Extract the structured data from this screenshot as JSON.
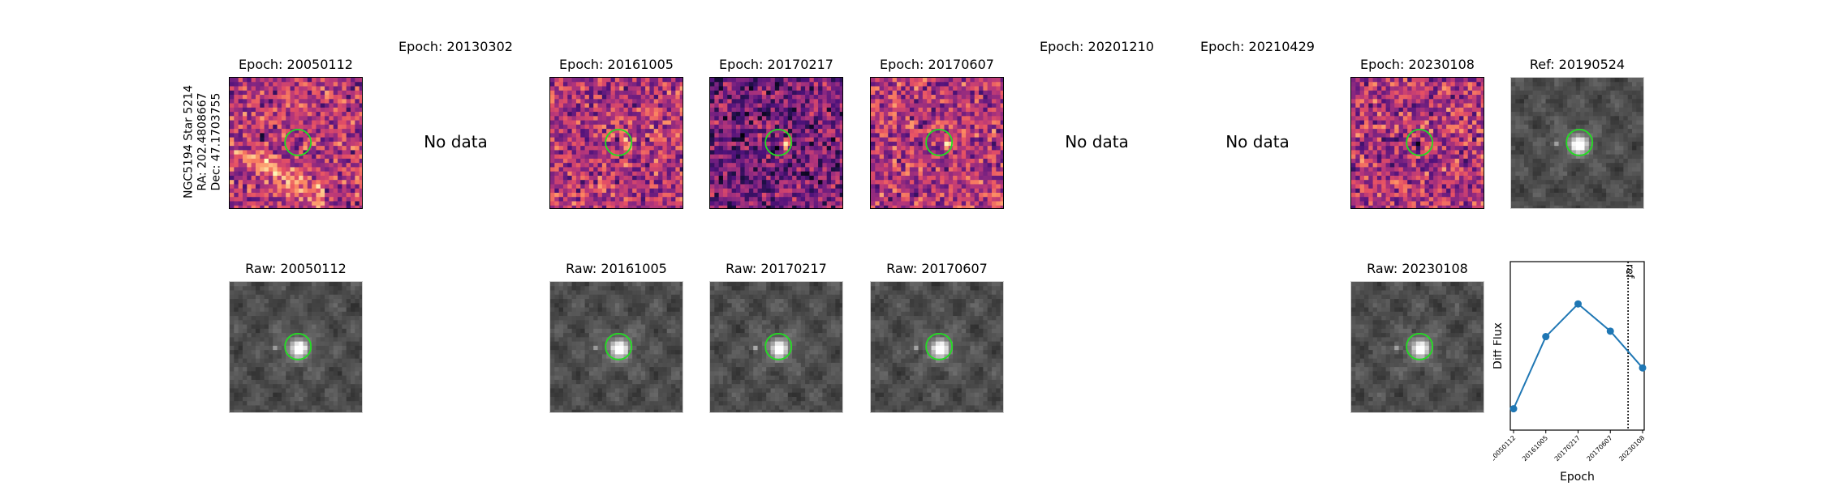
{
  "star_label": [
    "NGC5194 Star 5214",
    "RA: 202.4808667",
    "Dec: 47.1703755"
  ],
  "no_data_text": "No data",
  "top_row": [
    {
      "title": "Epoch: 20050112",
      "has_data": true
    },
    {
      "title": "Epoch: 20130302",
      "has_data": false
    },
    {
      "title": "Epoch: 20161005",
      "has_data": true
    },
    {
      "title": "Epoch: 20170217",
      "has_data": true
    },
    {
      "title": "Epoch: 20170607",
      "has_data": true
    },
    {
      "title": "Epoch: 20201210",
      "has_data": false
    },
    {
      "title": "Epoch: 20210429",
      "has_data": false
    },
    {
      "title": "Epoch: 20230108",
      "has_data": true
    },
    {
      "title": "Ref: 20190524",
      "has_data": true
    }
  ],
  "bottom_row": [
    {
      "title": "Raw: 20050112"
    },
    {
      "title": "Raw: 20161005"
    },
    {
      "title": "Raw: 20170217"
    },
    {
      "title": "Raw: 20170607"
    },
    {
      "title": "Raw: 20230108"
    }
  ],
  "colors": {
    "circle": "#22dd22",
    "line": "#1f77b4"
  },
  "chart_data": {
    "type": "line",
    "x": [
      "20050112",
      "20161005",
      "20170217",
      "20170607",
      "20230108"
    ],
    "values": [
      0.05,
      0.58,
      0.82,
      0.62,
      0.35
    ],
    "xlabel": "Epoch",
    "ylabel": "Diff Flux",
    "reference_line": {
      "label": "ref",
      "style": "dotted"
    },
    "grid": false,
    "yticks": "none"
  }
}
